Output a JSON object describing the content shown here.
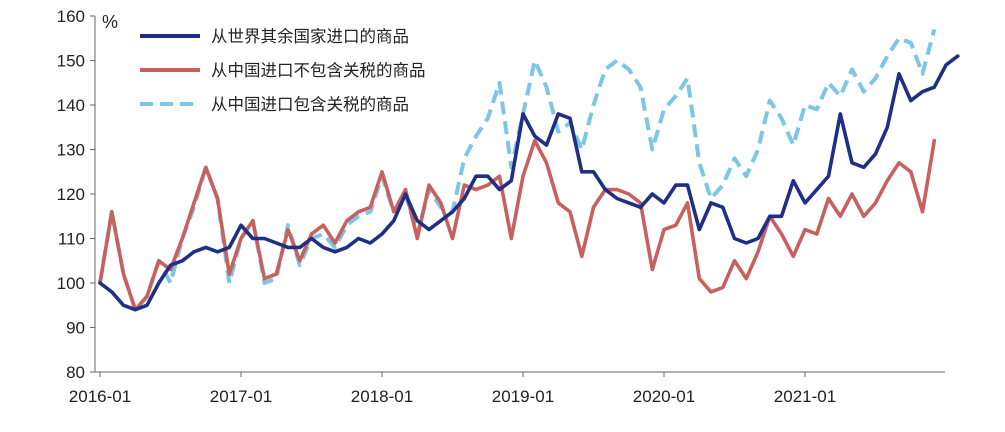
{
  "chart_data": {
    "type": "line",
    "ylabel": "%",
    "ylim": [
      80,
      160
    ],
    "yticks": [
      80,
      90,
      100,
      110,
      120,
      130,
      140,
      150,
      160
    ],
    "x_tick_labels": [
      "2016-01",
      "2017-01",
      "2018-01",
      "2019-01",
      "2020-01",
      "2021-01"
    ],
    "x_start": "2016-01",
    "x_end": "2021-12",
    "grid": false,
    "legend_position": "top-left",
    "series": [
      {
        "name": "从世界其余国家进口的商品",
        "color": "#1F2F86",
        "style": "solid",
        "values": [
          100,
          98,
          95,
          94,
          95,
          100,
          104,
          105,
          107,
          108,
          107,
          108,
          113,
          110,
          110,
          109,
          108,
          108,
          110,
          108,
          107,
          108,
          110,
          109,
          111,
          114,
          120,
          114,
          112,
          114,
          116,
          119,
          124,
          124,
          121,
          123,
          138,
          133,
          131,
          138,
          137,
          125,
          125,
          121,
          119,
          118,
          117,
          120,
          118,
          122,
          122,
          112,
          118,
          117,
          110,
          109,
          110,
          115,
          115,
          123,
          118,
          121,
          124,
          138,
          127,
          126,
          129,
          135,
          147,
          141,
          143,
          144,
          149,
          151
        ]
      },
      {
        "name": "从中国进口不包含关税的商品",
        "color": "#C8605E",
        "style": "solid",
        "values": [
          100,
          116,
          102,
          94,
          97,
          105,
          103,
          110,
          118,
          126,
          119,
          102,
          110,
          114,
          101,
          102,
          112,
          105,
          111,
          113,
          109,
          114,
          116,
          117,
          125,
          116,
          121,
          110,
          122,
          118,
          110,
          122,
          121,
          122,
          124,
          110,
          124,
          132,
          127,
          118,
          116,
          106,
          117,
          121,
          121,
          120,
          118,
          103,
          112,
          113,
          118,
          101,
          98,
          99,
          105,
          101,
          107,
          115,
          111,
          106,
          112,
          111,
          119,
          115,
          120,
          115,
          118,
          123,
          127,
          125,
          116,
          132
        ]
      },
      {
        "name": "从中国进口包含关税的商品",
        "color": "#7DC6E6",
        "style": "dashed",
        "values": [
          100,
          116,
          102,
          94,
          97,
          105,
          100,
          110,
          117,
          126,
          119,
          100,
          110,
          114,
          100,
          101,
          113,
          104,
          110,
          111,
          108,
          113,
          115,
          116,
          124,
          116,
          120,
          111,
          121,
          117,
          116,
          128,
          133,
          137,
          145,
          126,
          138,
          150,
          144,
          134,
          136,
          130,
          140,
          148,
          150,
          148,
          144,
          130,
          139,
          142,
          146,
          127,
          119,
          122,
          128,
          124,
          130,
          141,
          137,
          131,
          140,
          139,
          145,
          142,
          148,
          143,
          146,
          151,
          155,
          154,
          147,
          157
        ]
      }
    ]
  }
}
